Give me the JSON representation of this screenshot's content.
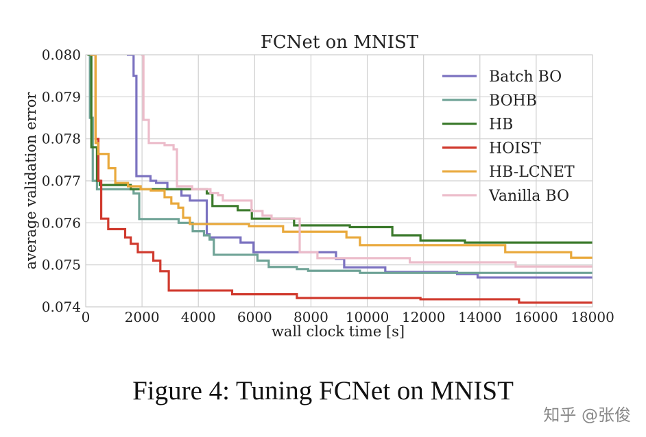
{
  "chart_data": {
    "type": "line",
    "title": "FCNet on MNIST",
    "xlabel": "wall clock time [s]",
    "ylabel": "average validation error",
    "xlim": [
      0,
      18000
    ],
    "ylim": [
      0.074,
      0.08
    ],
    "xticks": [
      0,
      2000,
      4000,
      6000,
      8000,
      10000,
      12000,
      14000,
      16000,
      18000
    ],
    "yticks": [
      "0.074",
      "0.075",
      "0.076",
      "0.077",
      "0.078",
      "0.079",
      "0.080"
    ],
    "grid": true,
    "legend_position": "top-right",
    "step": true,
    "series": [
      {
        "name": "Batch BO",
        "color": "#7b72c0",
        "points": [
          [
            1500,
            0.08
          ],
          [
            1700,
            0.0795
          ],
          [
            1800,
            0.07711
          ],
          [
            2300,
            0.077
          ],
          [
            2500,
            0.07695
          ],
          [
            2900,
            0.0768
          ],
          [
            3400,
            0.07665
          ],
          [
            3700,
            0.07653
          ],
          [
            4300,
            0.07573
          ],
          [
            4400,
            0.07565
          ],
          [
            5500,
            0.07553
          ],
          [
            5960,
            0.0753
          ],
          [
            8890,
            0.07514
          ],
          [
            9180,
            0.07494
          ],
          [
            10640,
            0.07483
          ],
          [
            13190,
            0.07478
          ],
          [
            13920,
            0.0747
          ],
          [
            18000,
            0.0747
          ]
        ]
      },
      {
        "name": "BOHB",
        "color": "#6fa396",
        "points": [
          [
            100,
            0.08
          ],
          [
            150,
            0.0785
          ],
          [
            250,
            0.077
          ],
          [
            400,
            0.0768
          ],
          [
            1700,
            0.0767
          ],
          [
            1900,
            0.07609
          ],
          [
            3300,
            0.076
          ],
          [
            3800,
            0.0758
          ],
          [
            4200,
            0.0757
          ],
          [
            4400,
            0.0756
          ],
          [
            4550,
            0.07524
          ],
          [
            6100,
            0.0751
          ],
          [
            6500,
            0.07495
          ],
          [
            7500,
            0.0749
          ],
          [
            7900,
            0.07486
          ],
          [
            9740,
            0.07481
          ],
          [
            18000,
            0.07481
          ]
        ]
      },
      {
        "name": "HB",
        "color": "#3b7a2c",
        "points": [
          [
            100,
            0.08
          ],
          [
            200,
            0.0778
          ],
          [
            400,
            0.077
          ],
          [
            500,
            0.0769
          ],
          [
            1600,
            0.0768
          ],
          [
            4300,
            0.0767
          ],
          [
            4500,
            0.0764
          ],
          [
            5400,
            0.0763
          ],
          [
            5900,
            0.0761
          ],
          [
            7400,
            0.07594
          ],
          [
            9380,
            0.0759
          ],
          [
            10890,
            0.0757
          ],
          [
            11890,
            0.07558
          ],
          [
            13470,
            0.07553
          ],
          [
            18000,
            0.07553
          ]
        ]
      },
      {
        "name": "HOIST",
        "color": "#d03a2e",
        "points": [
          [
            200,
            0.08
          ],
          [
            350,
            0.078
          ],
          [
            450,
            0.077
          ],
          [
            550,
            0.0761
          ],
          [
            800,
            0.07585
          ],
          [
            1400,
            0.07565
          ],
          [
            1600,
            0.0755
          ],
          [
            1850,
            0.0753
          ],
          [
            2400,
            0.0751
          ],
          [
            2650,
            0.07485
          ],
          [
            2950,
            0.07439
          ],
          [
            5200,
            0.0743
          ],
          [
            7500,
            0.07421
          ],
          [
            11890,
            0.07418
          ],
          [
            15390,
            0.0741
          ],
          [
            18000,
            0.0741
          ]
        ]
      },
      {
        "name": "HB-LCNET",
        "color": "#e9a93c",
        "points": [
          [
            200,
            0.08
          ],
          [
            350,
            0.0779
          ],
          [
            440,
            0.07764
          ],
          [
            810,
            0.0773
          ],
          [
            1050,
            0.07695
          ],
          [
            1500,
            0.07687
          ],
          [
            1950,
            0.0768
          ],
          [
            2310,
            0.07677
          ],
          [
            2800,
            0.07661
          ],
          [
            3040,
            0.07646
          ],
          [
            3290,
            0.07636
          ],
          [
            3460,
            0.07612
          ],
          [
            3700,
            0.07597
          ],
          [
            5800,
            0.07592
          ],
          [
            7010,
            0.07579
          ],
          [
            9260,
            0.07565
          ],
          [
            9740,
            0.07547
          ],
          [
            14900,
            0.0753
          ],
          [
            17240,
            0.07517
          ],
          [
            18000,
            0.07517
          ]
        ]
      },
      {
        "name": "Vanilla BO",
        "color": "#ecbcca",
        "points": [
          [
            2000,
            0.08
          ],
          [
            2050,
            0.07845
          ],
          [
            2240,
            0.0779
          ],
          [
            2800,
            0.07785
          ],
          [
            3120,
            0.07775
          ],
          [
            3240,
            0.07687
          ],
          [
            3780,
            0.0768
          ],
          [
            4430,
            0.07671
          ],
          [
            4700,
            0.07666
          ],
          [
            4870,
            0.07653
          ],
          [
            5890,
            0.07628
          ],
          [
            6280,
            0.07617
          ],
          [
            6600,
            0.0761
          ],
          [
            7600,
            0.0753
          ],
          [
            8230,
            0.07516
          ],
          [
            11510,
            0.07506
          ],
          [
            15270,
            0.07496
          ],
          [
            18000,
            0.07496
          ]
        ]
      }
    ]
  },
  "caption": "Figure 4: Tuning FCNet on MNIST",
  "watermark": "知乎 @张俊"
}
